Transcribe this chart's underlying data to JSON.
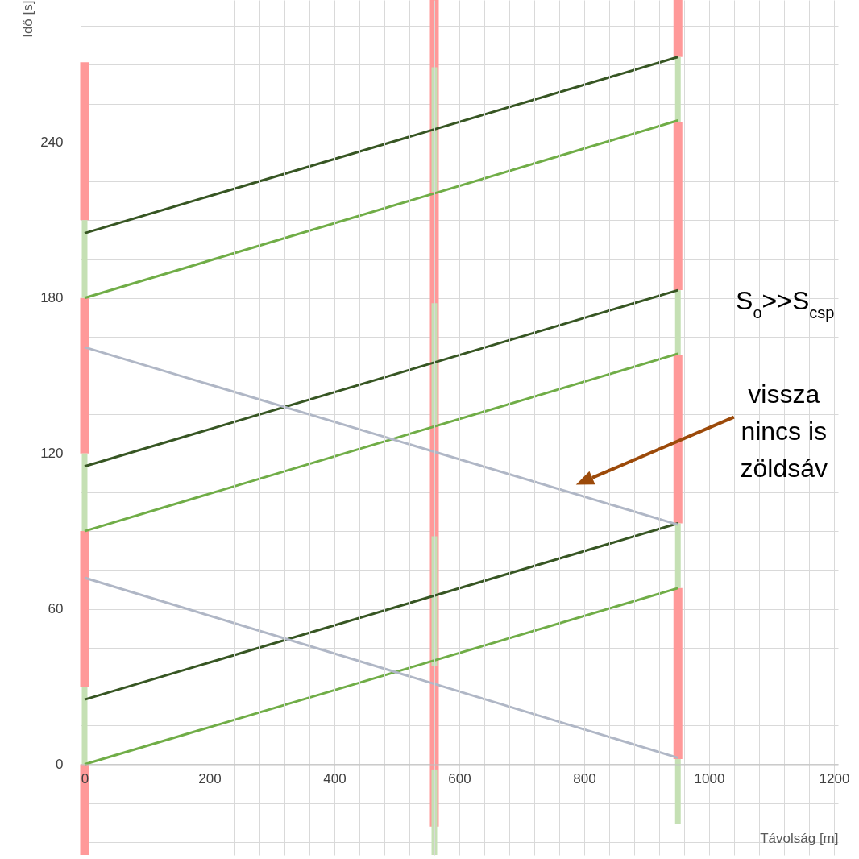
{
  "chart_data": {
    "type": "line",
    "xlabel": "Távolság [m]",
    "ylabel": "Idő [s]",
    "grid": true,
    "xlim": [
      0,
      1200
    ],
    "ylim": [
      -35,
      295
    ],
    "xticks": [
      0,
      {
        "value": 40,
        "label": null
      },
      {
        "value": 80,
        "label": null
      },
      {
        "value": 120,
        "label": null
      },
      {
        "value": 160,
        "label": null
      },
      200,
      {
        "value": 240,
        "label": null
      },
      {
        "value": 280,
        "label": null
      },
      {
        "value": 320,
        "label": null
      },
      {
        "value": 360,
        "label": null
      },
      400,
      {
        "value": 440,
        "label": null
      },
      {
        "value": 480,
        "label": null
      },
      {
        "value": 520,
        "label": null
      },
      {
        "value": 560,
        "label": null
      },
      600,
      {
        "value": 640,
        "label": null
      },
      {
        "value": 680,
        "label": null
      },
      {
        "value": 720,
        "label": null
      },
      {
        "value": 760,
        "label": null
      },
      800,
      {
        "value": 840,
        "label": null
      },
      {
        "value": 880,
        "label": null
      },
      {
        "value": 920,
        "label": null
      },
      {
        "value": 960,
        "label": null
      },
      1000,
      {
        "value": 1040,
        "label": null
      },
      {
        "value": 1080,
        "label": null
      },
      {
        "value": 1120,
        "label": null
      },
      {
        "value": 1160,
        "label": null
      },
      1200
    ],
    "yticks": [
      {
        "value": -30,
        "label": null
      },
      {
        "value": -15,
        "label": null
      },
      0,
      {
        "value": 15,
        "label": null
      },
      {
        "value": 30,
        "label": null
      },
      {
        "value": 45,
        "label": null
      },
      60,
      {
        "value": 75,
        "label": null
      },
      {
        "value": 90,
        "label": null
      },
      {
        "value": 105,
        "label": null
      },
      120,
      {
        "value": 135,
        "label": null
      },
      {
        "value": 150,
        "label": null
      },
      {
        "value": 165,
        "label": null
      },
      180,
      {
        "value": 195,
        "label": null
      },
      {
        "value": 210,
        "label": null
      },
      {
        "value": 225,
        "label": null
      },
      240,
      {
        "value": 255,
        "label": null
      },
      {
        "value": 270,
        "label": null
      },
      {
        "value": 285,
        "label": null
      }
    ],
    "series": [
      {
        "type": "bar",
        "color": "#ff9999",
        "x": [
          0,
          560,
          950
        ],
        "base": [
          -35,
          -24,
          2
        ],
        "values": [
          35,
          319,
          66
        ]
      },
      {
        "type": "bar",
        "color": "#ff9999",
        "x": [
          0,
          950
        ],
        "base": [
          30,
          93
        ],
        "values": [
          60,
          65
        ]
      },
      {
        "type": "bar",
        "color": "#ff9999",
        "x": [
          0,
          950
        ],
        "base": [
          120,
          183
        ],
        "values": [
          60,
          65
        ]
      },
      {
        "type": "bar",
        "color": "#ff9999",
        "x": [
          0,
          950
        ],
        "base": [
          210,
          273
        ],
        "values": [
          61,
          22
        ]
      },
      {
        "type": "bar",
        "color": "#c5e0b4",
        "x": [
          0,
          560,
          950
        ],
        "base": [
          0,
          -35,
          -23
        ],
        "values": [
          30,
          33,
          25
        ]
      },
      {
        "type": "bar",
        "color": "#c5e0b4",
        "x": [
          0,
          560,
          950
        ],
        "base": [
          90,
          38,
          68
        ],
        "values": [
          30,
          50,
          25
        ]
      },
      {
        "type": "bar",
        "color": "#c5e0b4",
        "x": [
          0,
          560,
          950
        ],
        "base": [
          180,
          131,
          158
        ],
        "values": [
          30,
          47,
          25
        ]
      },
      {
        "type": "bar",
        "color": "#c5e0b4",
        "x": [
          560,
          950
        ],
        "base": [
          221,
          248
        ],
        "values": [
          48,
          25
        ]
      },
      {
        "type": "line",
        "color": "#70ad47",
        "x": [
          0,
          950
        ],
        "values": [
          0,
          68
        ]
      },
      {
        "type": "line",
        "color": "#70ad47",
        "x": [
          0,
          950
        ],
        "values": [
          90,
          158.5
        ]
      },
      {
        "type": "line",
        "color": "#70ad47",
        "x": [
          0,
          950
        ],
        "values": [
          180,
          248.5
        ]
      },
      {
        "type": "line",
        "color": "#375623",
        "x": [
          0,
          950
        ],
        "values": [
          25,
          93
        ]
      },
      {
        "type": "line",
        "color": "#375623",
        "x": [
          0,
          950
        ],
        "values": [
          115,
          183
        ]
      },
      {
        "type": "line",
        "color": "#375623",
        "x": [
          0,
          950
        ],
        "values": [
          205,
          273
        ]
      },
      {
        "type": "line",
        "color": "#b0b7c6",
        "x": [
          0,
          950
        ],
        "values": [
          72,
          2.5
        ]
      },
      {
        "type": "line",
        "color": "#b0b7c6",
        "x": [
          0,
          950
        ],
        "values": [
          161,
          92.5
        ]
      }
    ],
    "annotations": [
      "S$_{o}$>>S$_{csp}$",
      "vissza nincs is zöldsáv"
    ]
  }
}
